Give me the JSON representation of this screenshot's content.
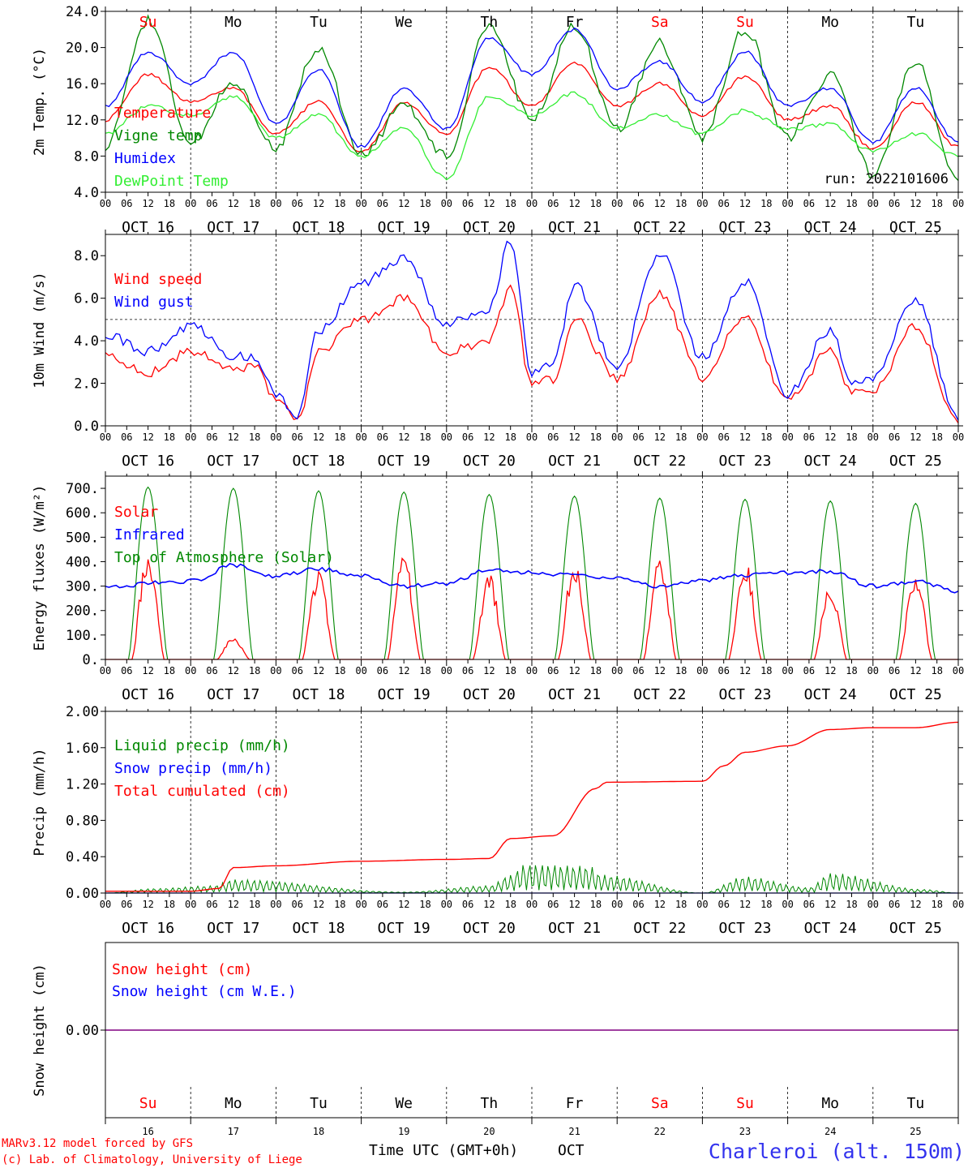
{
  "run_label": "run: 2022101606",
  "x_hours": [
    "00",
    "06",
    "12",
    "18"
  ],
  "days": [
    "OCT 16",
    "OCT 17",
    "OCT 18",
    "OCT 19",
    "OCT 20",
    "OCT 21",
    "OCT 22",
    "OCT 23",
    "OCT 24",
    "OCT 25"
  ],
  "weekdays": [
    "Su",
    "Mo",
    "Tu",
    "We",
    "Th",
    "Fr",
    "Sa",
    "Su",
    "Mo",
    "Tu"
  ],
  "weekend_color": "#ff0000",
  "weekday_color": "#000000",
  "bottom_day_numbers": [
    "16",
    "17",
    "18",
    "19",
    "20",
    "21",
    "22",
    "23",
    "24",
    "25"
  ],
  "footer": {
    "credit_line1": "MARv3.12 model forced by GFS",
    "credit_line2": "(c) Lab. of Climatology, University of Liege",
    "time_label": "Time UTC (GMT+0h)",
    "month": "OCT",
    "station": "Charleroi (alt. 150m)"
  },
  "colors": {
    "red": "#ff0000",
    "green": "#008800",
    "blue": "#0000ff",
    "lightgreen": "#33ee33",
    "purple": "#800080"
  },
  "chart_data": [
    {
      "id": "temp",
      "type": "line",
      "ylabel": "2m Temp. (°C)",
      "ylim": [
        4,
        24
      ],
      "yticks": [
        "4.0",
        "8.0",
        "12.0",
        "16.0",
        "20.0",
        "24.0"
      ],
      "xlim_hours": [
        0,
        240
      ],
      "grid": "dashed vertical at day boundaries",
      "legend_placement": "top-left",
      "series": [
        {
          "name": "Temperature",
          "color": "#ff0000",
          "x": [
            0,
            12,
            24,
            36,
            48,
            60,
            72,
            84,
            96,
            108,
            120,
            132,
            144,
            156,
            168,
            180,
            192,
            204,
            216,
            228,
            240
          ],
          "values": [
            12.0,
            17.0,
            14.0,
            15.5,
            10.5,
            14.0,
            8.5,
            13.8,
            10.5,
            17.8,
            13.5,
            18.2,
            13.5,
            16.0,
            12.5,
            16.8,
            12.0,
            13.5,
            8.8,
            14.0,
            9.0
          ]
        },
        {
          "name": "Vigne temp",
          "color": "#008800",
          "x": [
            0,
            12,
            24,
            36,
            48,
            60,
            72,
            84,
            96,
            108,
            120,
            132,
            144,
            156,
            168,
            180,
            192,
            204,
            216,
            228,
            240
          ],
          "values": [
            9.0,
            23.0,
            9.5,
            16.0,
            9.0,
            20.0,
            8.0,
            13.5,
            8.0,
            22.5,
            12.0,
            22.5,
            11.0,
            20.5,
            10.0,
            22.0,
            10.0,
            17.0,
            6.0,
            18.5,
            5.0
          ]
        },
        {
          "name": "Humidex",
          "color": "#0000ff",
          "x": [
            0,
            12,
            24,
            36,
            48,
            60,
            72,
            84,
            96,
            108,
            120,
            132,
            144,
            156,
            168,
            180,
            192,
            204,
            216,
            228,
            240
          ],
          "values": [
            13.5,
            19.5,
            16.0,
            19.5,
            11.5,
            17.5,
            9.0,
            15.5,
            11.0,
            21.0,
            17.0,
            22.0,
            15.5,
            18.5,
            14.0,
            19.5,
            13.5,
            15.5,
            9.5,
            15.5,
            9.5
          ]
        },
        {
          "name": "DewPoint Temp",
          "color": "#33ee33",
          "x": [
            0,
            12,
            24,
            36,
            48,
            60,
            72,
            84,
            96,
            108,
            120,
            132,
            144,
            156,
            168,
            180,
            192,
            204,
            216,
            228,
            240
          ],
          "values": [
            10.5,
            13.5,
            12.5,
            14.5,
            10.0,
            12.5,
            8.0,
            11.0,
            5.5,
            14.5,
            12.5,
            15.0,
            11.0,
            12.5,
            10.5,
            13.0,
            11.0,
            11.5,
            8.5,
            10.5,
            8.0
          ]
        }
      ]
    },
    {
      "id": "wind",
      "type": "line",
      "ylabel": "10m Wind (m/s)",
      "ylim": [
        0,
        9
      ],
      "yticks": [
        "0.0",
        "2.0",
        "4.0",
        "6.0",
        "8.0"
      ],
      "reference_line": 5,
      "xlim_hours": [
        0,
        240
      ],
      "legend_placement": "top-left",
      "series": [
        {
          "name": "Wind speed",
          "color": "#ff0000",
          "x": [
            0,
            12,
            24,
            36,
            42,
            48,
            54,
            60,
            72,
            84,
            96,
            108,
            114,
            120,
            126,
            132,
            144,
            156,
            168,
            180,
            192,
            204,
            210,
            216,
            228,
            240
          ],
          "values": [
            3.3,
            2.5,
            3.5,
            2.7,
            2.8,
            1.2,
            0.3,
            3.5,
            5.0,
            6.0,
            3.5,
            4.0,
            6.5,
            2.0,
            2.2,
            5.0,
            2.2,
            6.2,
            2.3,
            5.2,
            1.2,
            3.5,
            1.6,
            1.7,
            4.7,
            0.3
          ]
        },
        {
          "name": "Wind gust",
          "color": "#0000ff",
          "x": [
            0,
            12,
            24,
            36,
            42,
            48,
            54,
            60,
            72,
            84,
            96,
            108,
            114,
            120,
            126,
            132,
            144,
            156,
            168,
            180,
            192,
            204,
            210,
            216,
            228,
            240
          ],
          "values": [
            4.3,
            3.5,
            4.7,
            3.3,
            3.2,
            1.5,
            0.5,
            4.5,
            6.7,
            7.9,
            4.8,
            5.5,
            8.7,
            2.5,
            3.0,
            6.6,
            2.8,
            8.1,
            3.2,
            6.8,
            1.5,
            4.5,
            2.1,
            2.2,
            6.0,
            0.4
          ]
        }
      ]
    },
    {
      "id": "energy",
      "type": "line",
      "ylabel": "Energy fluxes (W/m²)",
      "ylim": [
        0,
        750
      ],
      "yticks": [
        "0.",
        "100.",
        "200.",
        "300.",
        "400.",
        "500.",
        "600.",
        "700."
      ],
      "xlim_hours": [
        0,
        240
      ],
      "legend_placement": "top-left",
      "series": [
        {
          "name": "Solar",
          "color": "#ff0000",
          "daily_peak": [
            460,
            95,
            360,
            445,
            350,
            410,
            440,
            410,
            320,
            380
          ]
        },
        {
          "name": "Infrared",
          "color": "#0000ff",
          "x": [
            0,
            24,
            36,
            48,
            60,
            72,
            84,
            96,
            108,
            120,
            132,
            144,
            156,
            168,
            180,
            192,
            204,
            216,
            228,
            240
          ],
          "values": [
            300,
            320,
            385,
            340,
            370,
            345,
            300,
            310,
            370,
            355,
            345,
            330,
            300,
            325,
            345,
            355,
            360,
            300,
            320,
            280
          ]
        },
        {
          "name": "Top of Atmosphere (Solar)",
          "color": "#008800",
          "daily_peak": [
            705,
            700,
            690,
            685,
            675,
            668,
            660,
            655,
            648,
            638
          ]
        }
      ]
    },
    {
      "id": "precip",
      "type": "line",
      "ylabel": "Precip (mm/h)",
      "ylim": [
        0,
        2
      ],
      "yticks": [
        "0.00",
        "0.40",
        "0.80",
        "1.20",
        "1.60",
        "2.00"
      ],
      "xlim_hours": [
        0,
        240
      ],
      "legend_placement": "top-left",
      "series": [
        {
          "name": "Liquid precip (mm/h)",
          "color": "#008800",
          "x": [
            0,
            14,
            30,
            36,
            84,
            108,
            114,
            118,
            136,
            140,
            168,
            180,
            198,
            204,
            230,
            240
          ],
          "values": [
            0,
            0.05,
            0.08,
            0.15,
            0.01,
            0.08,
            0.2,
            0.32,
            0.3,
            0.2,
            0,
            0.18,
            0.06,
            0.22,
            0.04,
            0
          ]
        },
        {
          "name": "Snow precip (mm/h)",
          "color": "#0000ff",
          "x": [
            0,
            240
          ],
          "values": [
            0,
            0
          ]
        },
        {
          "name": "Total cumulated (cm)",
          "color": "#ff0000",
          "x": [
            0,
            24,
            32,
            36,
            48,
            72,
            96,
            108,
            114,
            126,
            138,
            141,
            168,
            174,
            180,
            192,
            204,
            216,
            228,
            240
          ],
          "values": [
            0.02,
            0.02,
            0.05,
            0.28,
            0.3,
            0.35,
            0.37,
            0.38,
            0.6,
            0.63,
            1.15,
            1.22,
            1.23,
            1.4,
            1.55,
            1.62,
            1.8,
            1.82,
            1.82,
            1.88
          ]
        }
      ]
    },
    {
      "id": "snow",
      "type": "line",
      "ylabel": "Snow height (cm)",
      "ytick_zero": "0.00",
      "xlim_hours": [
        0,
        240
      ],
      "legend_placement": "top-left",
      "series": [
        {
          "name": "Snow height (cm)",
          "color": "#ff0000",
          "x": [
            0,
            240
          ],
          "values": [
            0,
            0
          ]
        },
        {
          "name": "Snow height (cm W.E.)",
          "color": "#0000ff",
          "x": [
            0,
            240
          ],
          "values": [
            0,
            0
          ]
        }
      ]
    }
  ]
}
